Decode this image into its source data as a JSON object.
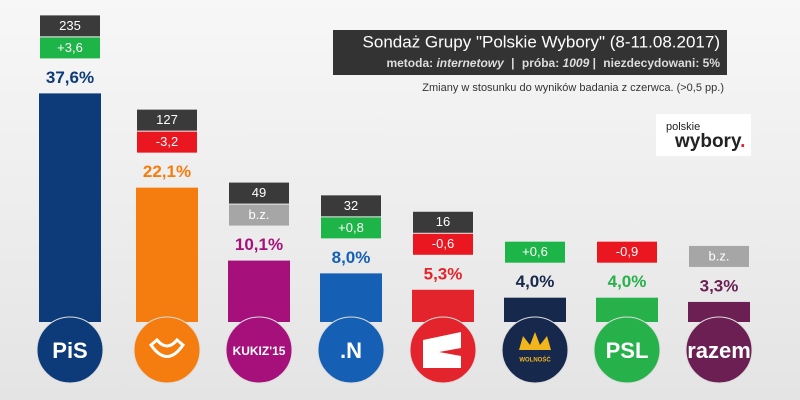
{
  "chart_data": {
    "type": "bar",
    "title": "Sondaż Grupy \"Polskie Wybory\" (8-11.08.2017)",
    "subtitle": {
      "method_label": "metoda:",
      "method": "internetowy",
      "separator": "|",
      "sample_label": "próba:",
      "sample": "1009",
      "undecided": "niezdecydowani: 5%"
    },
    "note": "Zmiany w stosunku do wyników badania z czerwca. (>0,5 pp.)",
    "logo": {
      "top": "polskie",
      "bottom": "wybory",
      "dot": "."
    },
    "categories": [
      "PiS",
      null,
      "KUKIZ'15",
      ".N",
      null,
      "WOLNOŚĆ",
      "PSL",
      "razem"
    ],
    "values": [
      37.6,
      22.1,
      10.1,
      8.0,
      5.3,
      4.0,
      4.0,
      3.3
    ],
    "value_labels": [
      "37,6%",
      "22,1%",
      "10,1%",
      "8,0%",
      "5,3%",
      "4,0%",
      "4,0%",
      "3,3%"
    ],
    "changes": [
      "+3,6",
      "-3,2",
      "b.z.",
      "+0,8",
      "-0,6",
      "+0,6",
      "-0,9",
      "b.z."
    ],
    "seats": [
      235,
      127,
      49,
      32,
      16,
      null,
      null,
      null
    ],
    "colors": [
      "#0d3a78",
      "#f57d0f",
      "#a5107a",
      "#1560b4",
      "#e4242c",
      "#17284d",
      "#27b14b",
      "#6b1f52"
    ],
    "label_colors": [
      "#0d3a78",
      "#f57d0f",
      "#a5107a",
      "#1560b4",
      "#e4242c",
      "#17284d",
      "#27b14b",
      "#6b1f52"
    ]
  }
}
